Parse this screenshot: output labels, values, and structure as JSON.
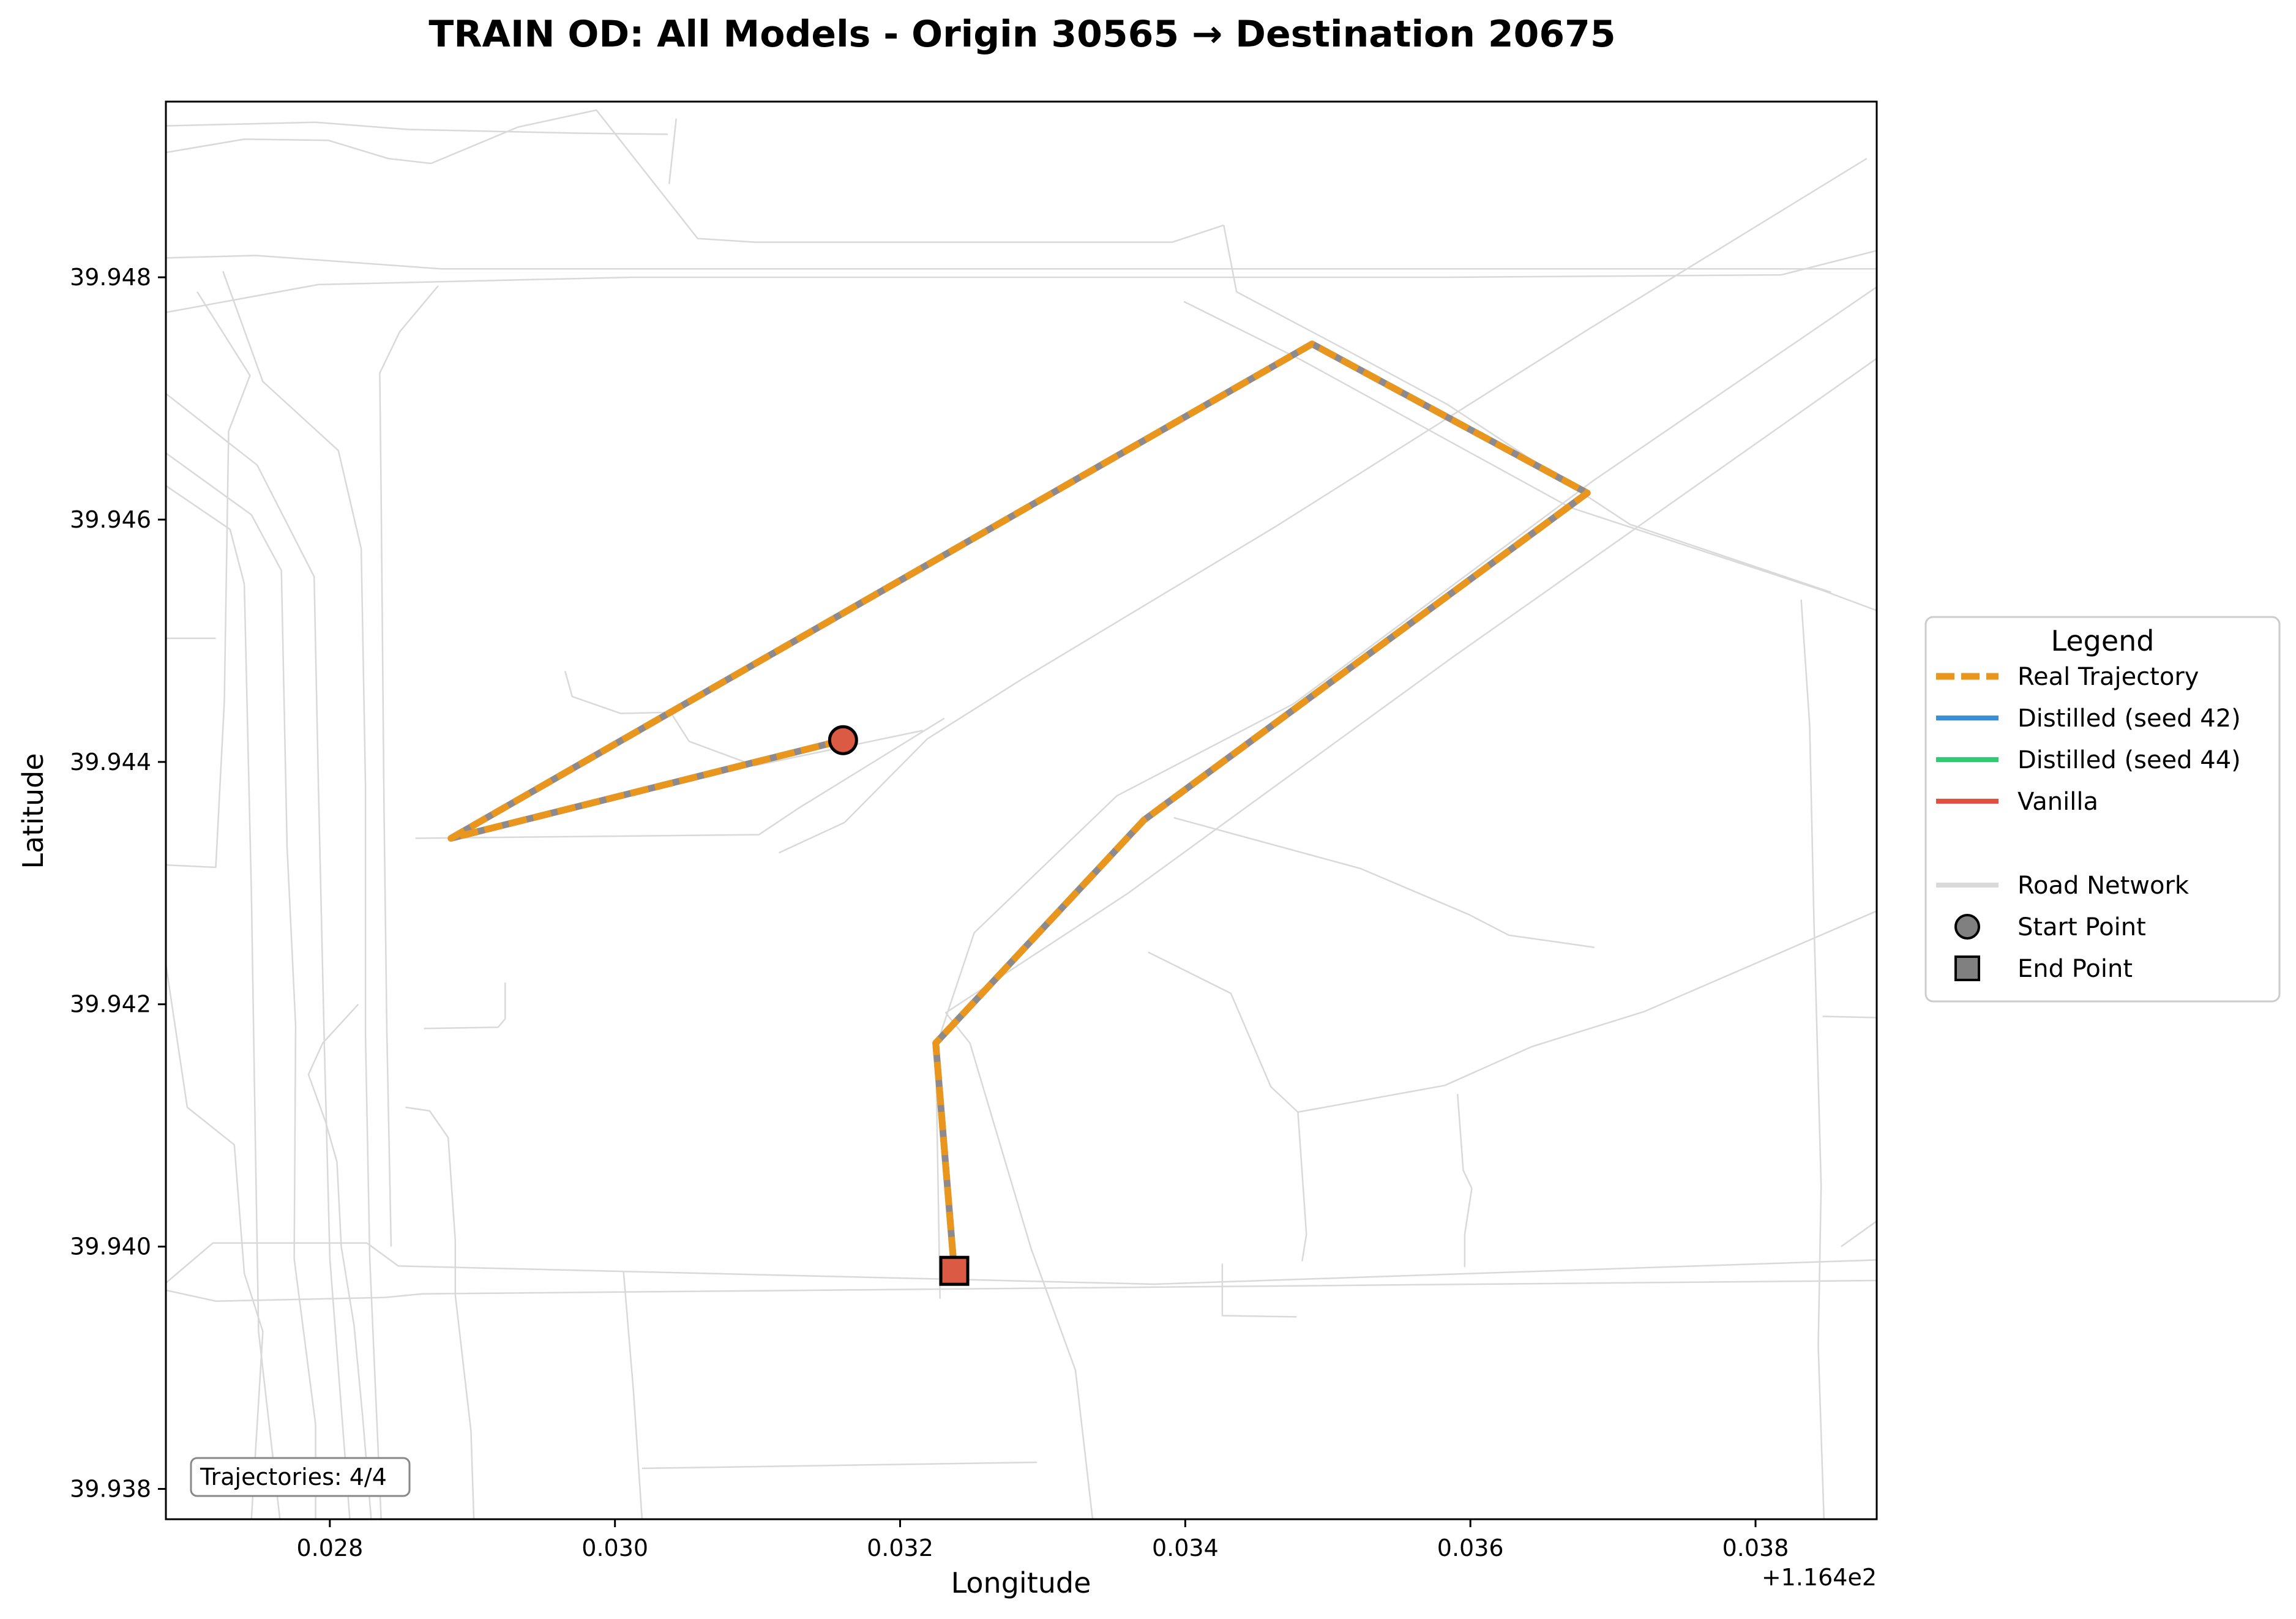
{
  "title": "TRAIN OD: All Models - Origin 30565 → Destination 20675",
  "chart_data": {
    "type": "line",
    "xlabel": "Longitude",
    "ylabel": "Latitude",
    "x_offset_label": "+1.164e2",
    "xlim": [
      116.42685,
      116.43885
    ],
    "ylim": [
      39.93775,
      39.94945
    ],
    "x_ticks": [
      116.428,
      116.43,
      116.432,
      116.434,
      116.436,
      116.438
    ],
    "x_tick_labels": [
      "0.028",
      "0.030",
      "0.032",
      "0.034",
      "0.036",
      "0.038"
    ],
    "y_ticks": [
      39.938,
      39.94,
      39.942,
      39.944,
      39.946,
      39.948
    ],
    "y_tick_labels": [
      "39.938",
      "39.940",
      "39.942",
      "39.944",
      "39.946",
      "39.948"
    ],
    "grid": false,
    "annotation": "Trajectories: 4/4",
    "legend": {
      "title": "Legend",
      "placement": "outside-right",
      "entries": [
        {
          "label": "Real Trajectory",
          "color": "#E8961E",
          "style": "dashed"
        },
        {
          "label": "Distilled (seed 42)",
          "color": "#3A8FD8",
          "style": "solid"
        },
        {
          "label": "Distilled (seed 44)",
          "color": "#2ECC71",
          "style": "solid"
        },
        {
          "label": "Vanilla",
          "color": "#E74C3C",
          "style": "solid"
        },
        {
          "label": "Road Network",
          "color": "#D9D9D9",
          "style": "solid"
        },
        {
          "label": "Start Point",
          "color": "#808080",
          "style": "marker-circle"
        },
        {
          "label": "End Point",
          "color": "#808080",
          "style": "marker-square"
        }
      ]
    },
    "series": [
      {
        "name": "Real Trajectory",
        "color": "#E8961E",
        "points": [
          [
            116.4316,
            39.94418
          ],
          [
            116.42885,
            39.94337
          ],
          [
            116.43489,
            39.94745
          ],
          [
            116.43682,
            39.94622
          ],
          [
            116.43371,
            39.94352
          ],
          [
            116.43225,
            39.94168
          ],
          [
            116.43238,
            39.9398
          ]
        ]
      }
    ],
    "start_point": {
      "lon": 116.4316,
      "lat": 39.94418,
      "color": "#DA5A44"
    },
    "end_point": {
      "lon": 116.43238,
      "lat": 39.9398,
      "color": "#DA5A44"
    },
    "road_network": {
      "color": "#D9D9D9",
      "lines": [
        [
          [
            116.42685,
            39.94816
          ],
          [
            116.42748,
            39.94818
          ],
          [
            116.42878,
            39.94807
          ],
          [
            116.4391,
            39.94807
          ]
        ],
        [
          [
            116.42685,
            39.94771
          ],
          [
            116.42792,
            39.94794
          ],
          [
            116.43012,
            39.948
          ],
          [
            116.43584,
            39.948
          ],
          [
            116.43818,
            39.94802
          ],
          [
            116.43885,
            39.94822
          ]
        ],
        [
          [
            116.42685,
            39.9397
          ],
          [
            116.42718,
            39.94003
          ],
          [
            116.42826,
            39.94003
          ],
          [
            116.42848,
            39.93984
          ],
          [
            116.43378,
            39.93969
          ],
          [
            116.43885,
            39.93989
          ]
        ],
        [
          [
            116.42685,
            39.93964
          ],
          [
            116.4272,
            39.93955
          ],
          [
            116.42838,
            39.93958
          ],
          [
            116.42865,
            39.93961
          ],
          [
            116.43885,
            39.93972
          ]
        ],
        [
          [
            116.42685,
            39.94925
          ],
          [
            116.4279,
            39.94928
          ],
          [
            116.42855,
            39.94922
          ],
          [
            116.42972,
            39.94919
          ],
          [
            116.43037,
            39.94918
          ]
        ],
        [
          [
            116.42685,
            39.94903
          ],
          [
            116.4274,
            39.94914
          ],
          [
            116.42799,
            39.94913
          ],
          [
            116.42841,
            39.94898
          ],
          [
            116.42871,
            39.94894
          ],
          [
            116.42932,
            39.94924
          ]
        ],
        [
          [
            116.42932,
            39.94924
          ],
          [
            116.42987,
            39.94938
          ],
          [
            116.43058,
            39.94832
          ],
          [
            116.43098,
            39.94829
          ],
          [
            116.43391,
            39.94829
          ],
          [
            116.43427,
            39.94843
          ]
        ],
        [
          [
            116.43427,
            39.94843
          ],
          [
            116.43436,
            39.94788
          ],
          [
            116.43513,
            39.9474
          ],
          [
            116.43584,
            39.94695
          ],
          [
            116.43712,
            39.94596
          ],
          [
            116.43853,
            39.9454
          ]
        ],
        [
          [
            116.43878,
            39.94898
          ],
          [
            116.43684,
            39.94758
          ],
          [
            116.43463,
            39.94594
          ],
          [
            116.43285,
            39.94468
          ],
          [
            116.43219,
            39.94419
          ],
          [
            116.43161,
            39.9435
          ],
          [
            116.43115,
            39.94325
          ]
        ],
        [
          [
            116.43885,
            39.94733
          ],
          [
            116.43587,
            39.94486
          ],
          [
            116.43359,
            39.94291
          ],
          [
            116.43232,
            39.94193
          ],
          [
            116.43249,
            39.94168
          ],
          [
            116.43292,
            39.93998
          ],
          [
            116.43323,
            39.93898
          ],
          [
            116.43335,
            39.93775
          ]
        ],
        [
          [
            116.43885,
            39.94792
          ],
          [
            116.43686,
            39.94632
          ],
          [
            116.43476,
            39.94448
          ],
          [
            116.43352,
            39.94372
          ],
          [
            116.43252,
            39.94259
          ],
          [
            116.43225,
            39.94164
          ],
          [
            116.43228,
            39.93957
          ]
        ],
        [
          [
            116.43399,
            39.9478
          ],
          [
            116.43481,
            39.94732
          ],
          [
            116.4367,
            39.9461
          ],
          [
            116.43846,
            39.94542
          ],
          [
            116.43885,
            39.94525
          ]
        ],
        [
          [
            116.42965,
            39.94475
          ],
          [
            116.4297,
            39.94454
          ],
          [
            116.43004,
            39.9444
          ],
          [
            116.43039,
            39.94441
          ],
          [
            116.43052,
            39.94417
          ],
          [
            116.43098,
            39.94397
          ],
          [
            116.43216,
            39.94426
          ]
        ],
        [
          [
            116.42685,
            39.94315
          ],
          [
            116.4272,
            39.94313
          ],
          [
            116.42726,
            39.9445
          ],
          [
            116.42729,
            39.94673
          ],
          [
            116.42744,
            39.94719
          ],
          [
            116.42707,
            39.94788
          ]
        ],
        [
          [
            116.42685,
            39.94502
          ],
          [
            116.4272,
            39.94502
          ]
        ],
        [
          [
            116.4286,
            39.94337
          ],
          [
            116.43101,
            39.9434
          ],
          [
            116.43129,
            39.94362
          ],
          [
            116.43231,
            39.94436
          ]
        ],
        [
          [
            116.43392,
            39.94354
          ],
          [
            116.43523,
            39.94312
          ],
          [
            116.43599,
            39.94274
          ],
          [
            116.43627,
            39.94257
          ],
          [
            116.43687,
            39.94247
          ]
        ],
        [
          [
            116.43374,
            39.94243
          ],
          [
            116.43432,
            39.94209
          ],
          [
            116.4346,
            39.94132
          ],
          [
            116.43479,
            39.94111
          ],
          [
            116.43582,
            39.94133
          ],
          [
            116.43643,
            39.94165
          ],
          [
            116.43722,
            39.94194
          ],
          [
            116.43885,
            39.94277
          ]
        ],
        [
          [
            116.43479,
            39.94111
          ],
          [
            116.43485,
            39.9401
          ],
          [
            116.43482,
            39.93988
          ]
        ],
        [
          [
            116.43591,
            39.94126
          ],
          [
            116.43595,
            39.94063
          ],
          [
            116.43601,
            39.94048
          ],
          [
            116.43596,
            39.9401
          ],
          [
            116.43596,
            39.93983
          ]
        ],
        [
          [
            116.43832,
            39.94534
          ],
          [
            116.43838,
            39.9443
          ],
          [
            116.43841,
            39.94268
          ],
          [
            116.43846,
            39.9405
          ],
          [
            116.43844,
            39.93918
          ],
          [
            116.43848,
            39.93775
          ]
        ],
        [
          [
            116.43885,
            39.94189
          ],
          [
            116.43847,
            39.9419
          ]
        ],
        [
          [
            116.4386,
            39.94
          ],
          [
            116.43885,
            39.94021
          ]
        ],
        [
          [
            116.4282,
            39.942
          ],
          [
            116.42795,
            39.94168
          ],
          [
            116.42785,
            39.94142
          ],
          [
            116.42797,
            39.94103
          ],
          [
            116.42805,
            39.9407
          ],
          [
            116.42808,
            39.94
          ]
        ],
        [
          [
            116.42808,
            39.94
          ],
          [
            116.42817,
            39.93935
          ],
          [
            116.42823,
            39.9386
          ],
          [
            116.42829,
            39.93775
          ]
        ],
        [
          [
            116.42685,
            39.94233
          ],
          [
            116.427,
            39.94115
          ],
          [
            116.42733,
            39.94084
          ],
          [
            116.4274,
            39.93978
          ],
          [
            116.42753,
            39.9393
          ],
          [
            116.42745,
            39.93775
          ]
        ],
        [
          [
            116.42685,
            39.94655
          ],
          [
            116.42745,
            39.94604
          ],
          [
            116.42766,
            39.94558
          ],
          [
            116.4277,
            39.9433
          ],
          [
            116.42776,
            39.94182
          ],
          [
            116.42775,
            39.9399
          ],
          [
            116.4279,
            39.93853
          ],
          [
            116.4279,
            39.93775
          ]
        ],
        [
          [
            116.42685,
            39.94628
          ],
          [
            116.4273,
            39.94592
          ],
          [
            116.4274,
            39.94547
          ],
          [
            116.42745,
            39.94292
          ],
          [
            116.42748,
            39.9407
          ],
          [
            116.4275,
            39.9393
          ],
          [
            116.42765,
            39.93775
          ]
        ],
        [
          [
            116.42685,
            39.94704
          ],
          [
            116.42749,
            39.94645
          ],
          [
            116.42789,
            39.94553
          ],
          [
            116.42792,
            39.9438
          ],
          [
            116.42796,
            39.94174
          ],
          [
            116.428,
            39.9399
          ],
          [
            116.42814,
            39.93775
          ]
        ],
        [
          [
            116.42725,
            39.94805
          ],
          [
            116.42753,
            39.94714
          ],
          [
            116.42806,
            39.94657
          ],
          [
            116.42822,
            39.94576
          ],
          [
            116.42825,
            39.9438
          ],
          [
            116.42825,
            39.94174
          ],
          [
            116.42828,
            39.9399
          ],
          [
            116.42836,
            39.93775
          ]
        ],
        [
          [
            116.42876,
            39.94793
          ],
          [
            116.42849,
            39.94755
          ],
          [
            116.42835,
            39.94721
          ],
          [
            116.42836,
            39.94618
          ],
          [
            116.42838,
            39.9436
          ],
          [
            116.4284,
            39.94177
          ],
          [
            116.42843,
            39.94
          ]
        ],
        [
          [
            116.42923,
            39.94218
          ],
          [
            116.42923,
            39.94188
          ],
          [
            116.42918,
            39.94181
          ],
          [
            116.42866,
            39.9418
          ]
        ],
        [
          [
            116.42853,
            39.94115
          ],
          [
            116.4287,
            39.94112
          ],
          [
            116.42883,
            39.9409
          ],
          [
            116.42888,
            39.94005
          ],
          [
            116.42888,
            39.9396
          ],
          [
            116.42899,
            39.93848
          ],
          [
            116.42901,
            39.93775
          ]
        ],
        [
          [
            116.43006,
            39.93979
          ],
          [
            116.43013,
            39.9388
          ],
          [
            116.43019,
            39.93775
          ]
        ],
        [
          [
            116.43019,
            39.93817
          ],
          [
            116.43296,
            39.93822
          ]
        ],
        [
          [
            116.43426,
            39.93986
          ],
          [
            116.43426,
            39.93943
          ],
          [
            116.43478,
            39.93942
          ]
        ],
        [
          [
            116.43043,
            39.94931
          ],
          [
            116.43038,
            39.94877
          ]
        ]
      ]
    }
  }
}
